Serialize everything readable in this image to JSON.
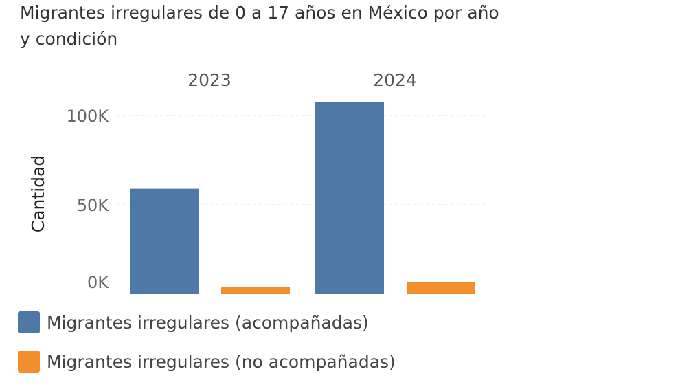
{
  "chart_data": {
    "type": "bar",
    "title": "Migrantes irregulares de 0 a  17 años en México por año y condición",
    "ylabel": "Cantidad",
    "xlabel": "",
    "categories": [
      "2023",
      "2024"
    ],
    "series": [
      {
        "name": "Migrantes irregulares (acompañadas)",
        "color": "#4e79a7",
        "values": [
          59000,
          107500
        ]
      },
      {
        "name": "Migrantes irregulares (no acompañadas)",
        "color": "#f28e2b",
        "values": [
          4200,
          6800
        ]
      }
    ],
    "ylim": [
      0,
      115000
    ],
    "yticks": [
      {
        "value": 0,
        "label": "0K"
      },
      {
        "value": 50000,
        "label": "50K"
      },
      {
        "value": 100000,
        "label": "100K"
      }
    ],
    "grid": true,
    "legend": "bottom-left"
  }
}
